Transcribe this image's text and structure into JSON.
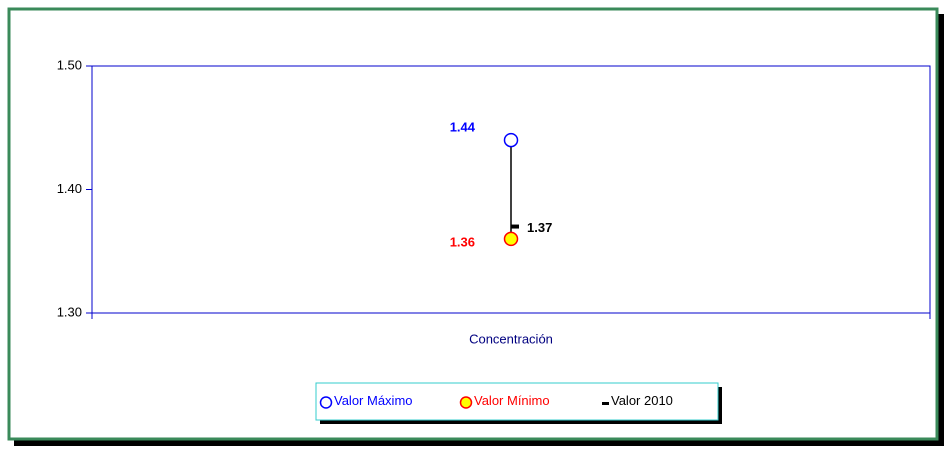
{
  "chart_data": {
    "type": "hilo",
    "categories": [
      "Concentración"
    ],
    "series": [
      {
        "name": "Valor Máximo",
        "role": "high",
        "color": "#0000ff",
        "fill": "#ffffff",
        "values": [
          1.44
        ]
      },
      {
        "name": "Valor Mínimo",
        "role": "low",
        "color": "#ff0000",
        "fill": "#ffff00",
        "values": [
          1.36
        ]
      },
      {
        "name": "Valor 2010",
        "role": "close",
        "color": "#000000",
        "fill": "#000000",
        "values": [
          1.37
        ]
      }
    ],
    "ylim": [
      1.3,
      1.5
    ],
    "yticks": [
      {
        "value": 1.3,
        "label": "1.30"
      },
      {
        "value": 1.4,
        "label": "1.40"
      },
      {
        "value": 1.5,
        "label": "1.50"
      }
    ],
    "grid": false,
    "legend": "bottom"
  }
}
